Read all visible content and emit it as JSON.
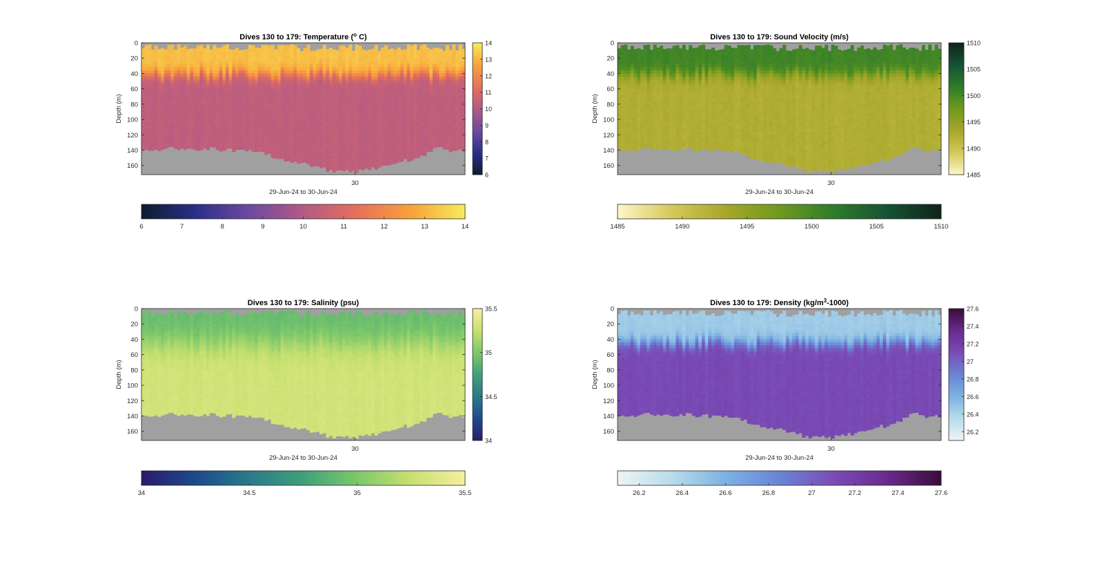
{
  "figure": {
    "background": "#ffffff",
    "no_data_color": "#a0a0a0"
  },
  "chart_data": [
    {
      "type": "heatmap",
      "key": "temp",
      "title": "Dives 130 to 179: Temperature (",
      "title_sup": "o",
      "title_suffix": " C)",
      "xlabel": "29-Jun-24 to 30-Jun-24",
      "ylabel": "Depth (m)",
      "x_tick_labels": [
        "30"
      ],
      "y_ticks": [
        0,
        20,
        40,
        60,
        80,
        100,
        120,
        140,
        160
      ],
      "ylim": [
        0,
        172
      ],
      "y_reversed": true,
      "dives": [
        130,
        179
      ],
      "colorbar": {
        "min": 6,
        "max": 14,
        "ticks": [
          6,
          7,
          8,
          9,
          10,
          11,
          12,
          13,
          14
        ],
        "colormap": [
          "#0d1b2e",
          "#2a2f8a",
          "#6d4aa0",
          "#b35a86",
          "#e6705a",
          "#f9a23a",
          "#f5ec5a"
        ]
      },
      "horizontal_colorbar": {
        "min": 6,
        "max": 14,
        "ticks": [
          6,
          7,
          8,
          9,
          10,
          11,
          12,
          13,
          14
        ]
      },
      "profile": {
        "surface_value": 13.2,
        "mixed_layer_depth": 42,
        "deep_value": 10.3,
        "transition": "sharp"
      }
    },
    {
      "type": "heatmap",
      "key": "sv",
      "title": "Dives 130 to 179: Sound Velocity (m/s)",
      "title_sup": "",
      "title_suffix": "",
      "xlabel": "29-Jun-24 to 30-Jun-24",
      "ylabel": "Depth (m)",
      "x_tick_labels": [
        "30"
      ],
      "y_ticks": [
        0,
        20,
        40,
        60,
        80,
        100,
        120,
        140,
        160
      ],
      "ylim": [
        0,
        172
      ],
      "y_reversed": true,
      "dives": [
        130,
        179
      ],
      "colorbar": {
        "min": 1485,
        "max": 1510,
        "ticks": [
          1485,
          1490,
          1495,
          1500,
          1505,
          1510
        ],
        "colormap": [
          "#fdf6cc",
          "#d6c85a",
          "#a7a72a",
          "#6f9a1e",
          "#2e7d2a",
          "#175234",
          "#10241a"
        ]
      },
      "horizontal_colorbar": {
        "min": 1485,
        "max": 1510,
        "ticks": [
          1485,
          1490,
          1495,
          1500,
          1505,
          1510
        ]
      },
      "profile": {
        "surface_value": 1500.5,
        "mixed_layer_depth": 42,
        "deep_value": 1492.5,
        "transition": "sharp"
      }
    },
    {
      "type": "heatmap",
      "key": "sal",
      "title": "Dives 130 to 179: Salinity (psu)",
      "title_sup": "",
      "title_suffix": "",
      "xlabel": "29-Jun-24 to 30-Jun-24",
      "ylabel": "Depth (m)",
      "x_tick_labels": [
        "30"
      ],
      "y_ticks": [
        0,
        20,
        40,
        60,
        80,
        100,
        120,
        140,
        160
      ],
      "ylim": [
        0,
        172
      ],
      "y_reversed": true,
      "dives": [
        130,
        179
      ],
      "colorbar": {
        "min": 34,
        "max": 35.5,
        "ticks": [
          34,
          34.5,
          35,
          35.5
        ],
        "colormap": [
          "#2a1a6b",
          "#1d4a8c",
          "#2a7a8a",
          "#3fa07a",
          "#7cc86a",
          "#c8e070",
          "#f6eea0"
        ]
      },
      "horizontal_colorbar": {
        "min": 34,
        "max": 35.5,
        "ticks": [
          34,
          34.5,
          35,
          35.5
        ]
      },
      "profile": {
        "surface_value": 34.92,
        "mixed_layer_depth": 45,
        "deep_value": 35.3,
        "transition": "gradual"
      }
    },
    {
      "type": "heatmap",
      "key": "dens",
      "title": "Dives 130 to 179: Density (kg/m",
      "title_sup": "3",
      "title_suffix": "-1000)",
      "xlabel": "29-Jun-24 to 30-Jun-24",
      "ylabel": "Depth (m)",
      "x_tick_labels": [
        "30"
      ],
      "y_ticks": [
        0,
        20,
        40,
        60,
        80,
        100,
        120,
        140,
        160
      ],
      "ylim": [
        0,
        172
      ],
      "y_reversed": true,
      "dives": [
        130,
        179
      ],
      "colorbar": {
        "min": 26.1,
        "max": 27.6,
        "ticks": [
          26.2,
          26.4,
          26.6,
          26.8,
          27,
          27.2,
          27.4,
          27.6
        ],
        "colormap": [
          "#eef4f6",
          "#b8dcea",
          "#7cb2e2",
          "#6a84d6",
          "#7a4cb6",
          "#6a2a8e",
          "#3a0c3a"
        ]
      },
      "horizontal_colorbar": {
        "min": 26.1,
        "max": 27.6,
        "ticks": [
          26.2,
          26.4,
          26.6,
          26.8,
          27,
          27.2,
          27.4,
          27.6
        ]
      },
      "profile": {
        "surface_value": 26.45,
        "mixed_layer_depth": 45,
        "deep_value": 27.12,
        "transition": "sharp"
      }
    }
  ]
}
